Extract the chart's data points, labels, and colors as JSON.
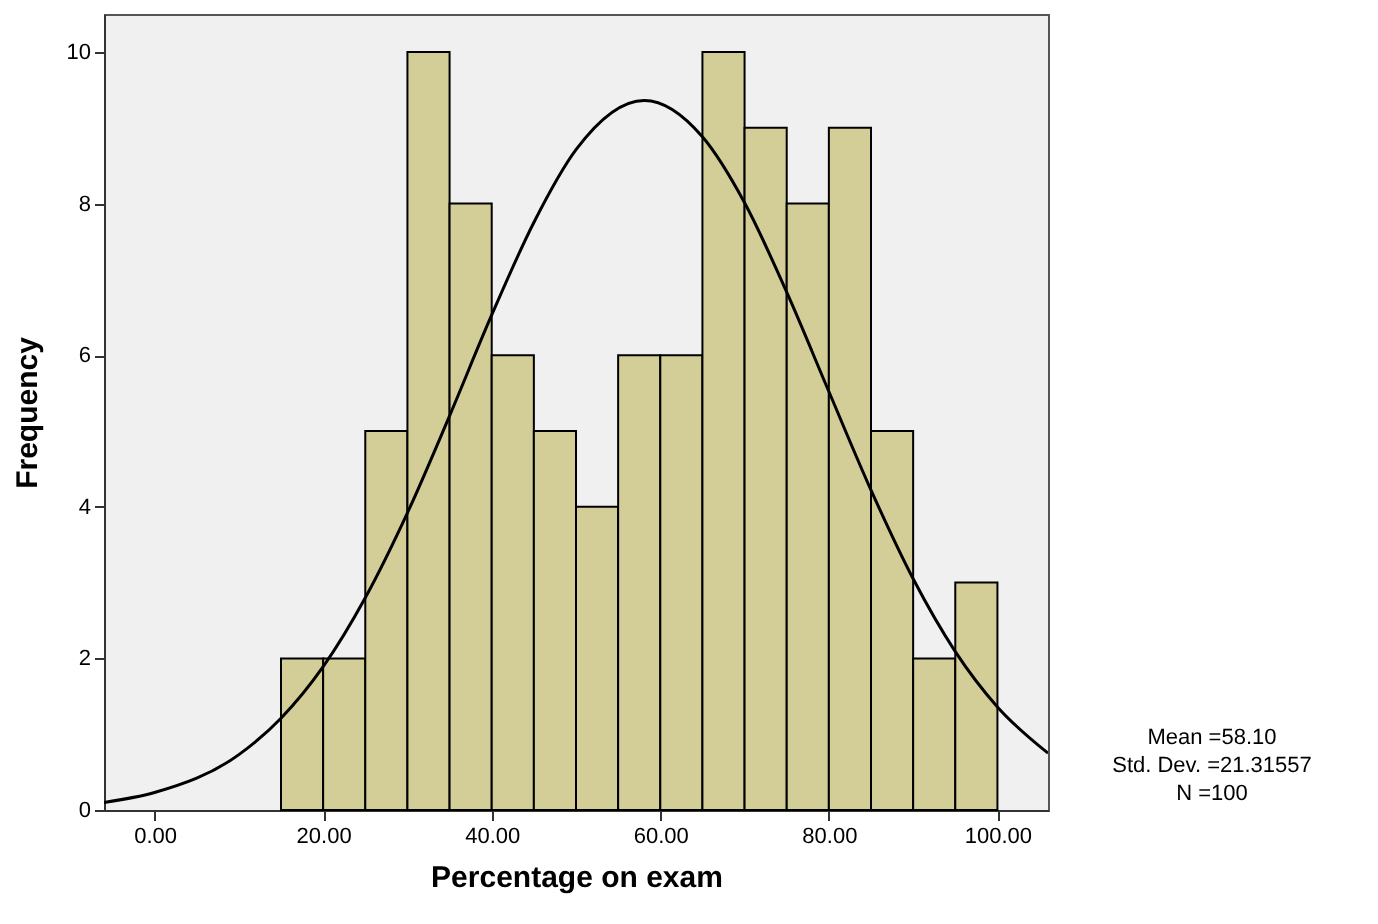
{
  "chart_data": {
    "type": "histogram",
    "xlabel": "Percentage on exam",
    "ylabel": "Frequency",
    "bins": [
      15,
      20,
      25,
      30,
      35,
      40,
      45,
      50,
      55,
      60,
      65,
      70,
      75,
      80,
      85,
      90,
      95,
      100
    ],
    "values": [
      2,
      2,
      5,
      10,
      8,
      6,
      5,
      4,
      6,
      6,
      10,
      9,
      8,
      9,
      5,
      2,
      3
    ],
    "color": "#d3ce97",
    "series": [
      {
        "type": "line",
        "color": "#000000",
        "x": [
          -6,
          0,
          10,
          15,
          20,
          25,
          30,
          35,
          40,
          45,
          50,
          58.1,
          65,
          70,
          75,
          80,
          85,
          90,
          95,
          100,
          106
        ],
        "values": [
          0.1,
          0.23,
          0.73,
          1.21,
          1.89,
          2.8,
          3.92,
          5.2,
          6.53,
          7.75,
          8.71,
          9.36,
          8.88,
          8.01,
          6.83,
          5.52,
          4.22,
          3.05,
          2.09,
          1.36,
          0.75
        ]
      }
    ],
    "xlim": [
      -6,
      106
    ],
    "xticks": [
      {
        "value": 0,
        "label": "0.00"
      },
      {
        "value": 20,
        "label": "20.00"
      },
      {
        "value": 40,
        "label": "40.00"
      },
      {
        "value": 60,
        "label": "60.00"
      },
      {
        "value": 80,
        "label": "80.00"
      },
      {
        "value": 100,
        "label": "100.00"
      }
    ],
    "ylim": [
      0,
      10.5
    ],
    "yticks": [
      0,
      2,
      4,
      6,
      8,
      10
    ],
    "grid": false,
    "annotations": [
      "Mean =58.10",
      "Std. Dev. =21.31557",
      "N =100"
    ]
  }
}
